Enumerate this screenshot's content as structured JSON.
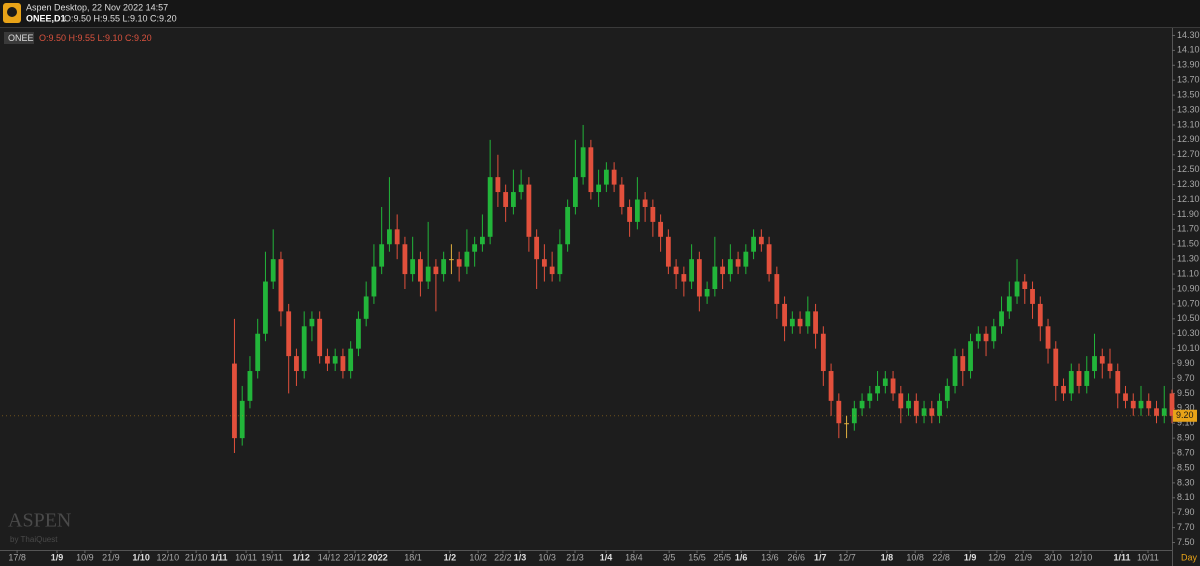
{
  "header": {
    "app": "Aspen Desktop, 22 Nov 2022 14:57",
    "symbol": "ONEE,D1",
    "ohlc": "O:9.50 H:9.55 L:9.10 C:9.20"
  },
  "watermark": {
    "brand": "ASPEN",
    "by": "by ThaiQuest"
  },
  "chart_data": {
    "type": "candlestick",
    "legend": "ONEE",
    "legend_ohlc": "O:9.50 H:9.55 L:9.10 C:9.20",
    "timeframe": "Day",
    "up_color": "#22b53a",
    "down_color": "#e2503c",
    "flat_color": "#e0b040",
    "xlim": [
      0,
      302
    ],
    "ylim": [
      7.4,
      14.4
    ],
    "x": [
      60,
      62,
      64,
      66,
      68,
      70,
      72,
      74,
      76,
      78,
      80,
      82,
      84,
      86,
      88,
      90,
      92,
      94,
      96,
      98,
      100,
      102,
      104,
      106,
      108,
      110,
      112,
      114,
      116,
      118,
      120,
      122,
      124,
      126,
      128,
      130,
      132,
      134,
      136,
      138,
      140,
      142,
      144,
      146,
      148,
      150,
      152,
      154,
      156,
      158,
      160,
      162,
      164,
      166,
      168,
      170,
      172,
      174,
      176,
      178,
      180,
      182,
      184,
      186,
      188,
      190,
      192,
      194,
      196,
      198,
      200,
      202,
      204,
      206,
      208,
      210,
      212,
      214,
      216,
      218,
      220,
      222,
      224,
      226,
      228,
      230,
      232,
      234,
      236,
      238,
      240,
      242,
      244,
      246,
      248,
      250,
      252,
      254,
      256,
      258,
      260,
      262,
      264,
      266,
      268,
      270,
      272,
      274,
      276,
      278,
      280,
      282,
      284,
      286,
      288,
      290,
      292,
      294,
      296,
      298,
      300,
      302
    ],
    "open": [
      9.9,
      8.9,
      9.4,
      9.8,
      10.3,
      11.0,
      11.3,
      10.6,
      10.0,
      9.8,
      10.4,
      10.5,
      10.0,
      9.9,
      10.0,
      9.8,
      10.1,
      10.5,
      10.8,
      11.2,
      11.5,
      11.7,
      11.5,
      11.1,
      11.3,
      11.0,
      11.2,
      11.1,
      11.3,
      11.3,
      11.2,
      11.4,
      11.5,
      11.6,
      12.4,
      12.2,
      12.0,
      12.2,
      12.3,
      11.6,
      11.3,
      11.2,
      11.1,
      11.5,
      12.0,
      12.4,
      12.8,
      12.2,
      12.3,
      12.5,
      12.3,
      12.0,
      11.8,
      12.1,
      12.0,
      11.8,
      11.6,
      11.2,
      11.1,
      11.0,
      11.3,
      10.8,
      10.9,
      11.2,
      11.1,
      11.3,
      11.2,
      11.4,
      11.6,
      11.5,
      11.1,
      10.7,
      10.4,
      10.5,
      10.4,
      10.6,
      10.3,
      9.8,
      9.4,
      9.1,
      9.1,
      9.3,
      9.4,
      9.5,
      9.6,
      9.7,
      9.5,
      9.3,
      9.4,
      9.2,
      9.3,
      9.2,
      9.4,
      9.6,
      10.0,
      9.8,
      10.2,
      10.3,
      10.2,
      10.4,
      10.6,
      10.8,
      11.0,
      10.9,
      10.7,
      10.4,
      10.1,
      9.6,
      9.5,
      9.8,
      9.6,
      9.8,
      10.0,
      9.9,
      9.8,
      9.5,
      9.4,
      9.3,
      9.4,
      9.3,
      9.2,
      9.5
    ],
    "high": [
      10.5,
      9.6,
      10.0,
      10.5,
      11.4,
      11.7,
      11.4,
      10.7,
      10.1,
      10.6,
      10.6,
      10.6,
      10.1,
      10.1,
      10.1,
      10.2,
      10.6,
      11.0,
      11.5,
      12.0,
      12.4,
      11.9,
      11.6,
      11.6,
      11.4,
      11.8,
      11.3,
      11.4,
      11.5,
      11.4,
      11.7,
      11.6,
      11.9,
      12.9,
      12.7,
      12.3,
      12.5,
      12.5,
      12.4,
      11.7,
      11.5,
      11.4,
      11.7,
      12.1,
      12.9,
      13.1,
      12.9,
      12.5,
      12.6,
      12.6,
      12.4,
      12.1,
      12.4,
      12.2,
      12.1,
      11.9,
      11.7,
      11.3,
      11.2,
      11.5,
      11.4,
      11.0,
      11.6,
      11.3,
      11.5,
      11.4,
      11.5,
      11.7,
      11.7,
      11.6,
      11.2,
      10.8,
      10.6,
      10.6,
      10.8,
      10.7,
      10.4,
      9.9,
      9.5,
      9.2,
      9.4,
      9.5,
      9.6,
      9.8,
      9.8,
      9.8,
      9.6,
      9.5,
      9.5,
      9.4,
      9.4,
      9.5,
      9.7,
      10.1,
      10.1,
      10.3,
      10.4,
      10.4,
      10.5,
      10.8,
      11.0,
      11.3,
      11.1,
      11.0,
      10.8,
      10.5,
      10.2,
      9.7,
      9.9,
      9.9,
      10.0,
      10.3,
      10.1,
      10.1,
      9.9,
      9.6,
      9.5,
      9.6,
      9.5,
      9.4,
      9.6,
      9.55
    ],
    "low": [
      8.7,
      8.8,
      9.3,
      9.7,
      10.2,
      10.9,
      10.4,
      9.5,
      9.6,
      9.7,
      10.2,
      9.9,
      9.8,
      9.8,
      9.7,
      9.7,
      10.0,
      10.4,
      10.7,
      11.1,
      11.4,
      11.3,
      10.9,
      11.0,
      10.8,
      10.9,
      10.6,
      11.0,
      11.1,
      11.0,
      11.1,
      11.2,
      11.4,
      11.5,
      12.0,
      11.8,
      11.9,
      12.1,
      11.4,
      10.9,
      11.0,
      11.0,
      11.0,
      11.4,
      11.9,
      12.3,
      12.1,
      12.0,
      12.2,
      12.2,
      11.9,
      11.6,
      11.7,
      11.8,
      11.6,
      11.4,
      11.1,
      10.9,
      10.8,
      10.9,
      10.6,
      10.7,
      10.8,
      10.9,
      11.0,
      11.1,
      11.1,
      11.3,
      11.4,
      11.0,
      10.5,
      10.2,
      10.3,
      10.3,
      10.3,
      10.1,
      9.6,
      9.2,
      8.9,
      8.9,
      9.0,
      9.2,
      9.3,
      9.4,
      9.5,
      9.4,
      9.1,
      9.2,
      9.1,
      9.1,
      9.1,
      9.1,
      9.3,
      9.5,
      9.6,
      9.7,
      10.1,
      10.0,
      10.1,
      10.3,
      10.5,
      10.7,
      10.7,
      10.5,
      10.2,
      9.9,
      9.4,
      9.4,
      9.4,
      9.5,
      9.5,
      9.7,
      9.7,
      9.7,
      9.3,
      9.3,
      9.2,
      9.2,
      9.2,
      9.1,
      9.1,
      9.1
    ],
    "close": [
      8.9,
      9.4,
      9.8,
      10.3,
      11.0,
      11.3,
      10.6,
      10.0,
      9.8,
      10.4,
      10.5,
      10.0,
      9.9,
      10.0,
      9.8,
      10.1,
      10.5,
      10.8,
      11.2,
      11.5,
      11.7,
      11.5,
      11.1,
      11.3,
      11.0,
      11.2,
      11.1,
      11.3,
      11.3,
      11.2,
      11.4,
      11.5,
      11.6,
      12.4,
      12.2,
      12.0,
      12.2,
      12.3,
      11.6,
      11.3,
      11.2,
      11.1,
      11.5,
      12.0,
      12.4,
      12.8,
      12.2,
      12.3,
      12.5,
      12.3,
      12.0,
      11.8,
      12.1,
      12.0,
      11.8,
      11.6,
      11.2,
      11.1,
      11.0,
      11.3,
      10.8,
      10.9,
      11.2,
      11.1,
      11.3,
      11.2,
      11.4,
      11.6,
      11.5,
      11.1,
      10.7,
      10.4,
      10.5,
      10.4,
      10.6,
      10.3,
      9.8,
      9.4,
      9.1,
      9.1,
      9.3,
      9.4,
      9.5,
      9.6,
      9.7,
      9.5,
      9.3,
      9.4,
      9.2,
      9.3,
      9.2,
      9.4,
      9.6,
      10.0,
      9.8,
      10.2,
      10.3,
      10.2,
      10.4,
      10.6,
      10.8,
      11.0,
      10.9,
      10.7,
      10.4,
      10.1,
      9.6,
      9.5,
      9.8,
      9.6,
      9.8,
      10.0,
      9.9,
      9.8,
      9.5,
      9.4,
      9.3,
      9.4,
      9.3,
      9.2,
      9.3,
      9.2
    ],
    "last_price": {
      "value": 9.2,
      "label": "9.20"
    },
    "yticks": [
      {
        "value": 7.5,
        "label": "7.50"
      },
      {
        "value": 7.7,
        "label": "7.70"
      },
      {
        "value": 7.9,
        "label": "7.90"
      },
      {
        "value": 8.1,
        "label": "8.10"
      },
      {
        "value": 8.3,
        "label": "8.30"
      },
      {
        "value": 8.5,
        "label": "8.50"
      },
      {
        "value": 8.7,
        "label": "8.70"
      },
      {
        "value": 8.9,
        "label": "8.90"
      },
      {
        "value": 9.1,
        "label": "9.10"
      },
      {
        "value": 9.3,
        "label": "9.30"
      },
      {
        "value": 9.5,
        "label": "9.50"
      },
      {
        "value": 9.7,
        "label": "9.70"
      },
      {
        "value": 9.9,
        "label": "9.90"
      },
      {
        "value": 10.1,
        "label": "10.10"
      },
      {
        "value": 10.3,
        "label": "10.30"
      },
      {
        "value": 10.5,
        "label": "10.50"
      },
      {
        "value": 10.7,
        "label": "10.70"
      },
      {
        "value": 10.9,
        "label": "10.90"
      },
      {
        "value": 11.1,
        "label": "11.10"
      },
      {
        "value": 11.3,
        "label": "11.30"
      },
      {
        "value": 11.5,
        "label": "11.50"
      },
      {
        "value": 11.7,
        "label": "11.70"
      },
      {
        "value": 11.9,
        "label": "11.90"
      },
      {
        "value": 12.1,
        "label": "12.10"
      },
      {
        "value": 12.3,
        "label": "12.30"
      },
      {
        "value": 12.5,
        "label": "12.50"
      },
      {
        "value": 12.7,
        "label": "12.70"
      },
      {
        "value": 12.9,
        "label": "12.90"
      },
      {
        "value": 13.1,
        "label": "13.10"
      },
      {
        "value": 13.3,
        "label": "13.30"
      },
      {
        "value": 13.5,
        "label": "13.50"
      },
      {
        "value": 13.7,
        "label": "13.70"
      },
      {
        "value": 13.9,
        "label": "13.90"
      },
      {
        "value": 14.1,
        "label": "14.10"
      },
      {
        "value": 14.3,
        "label": "14.30"
      }
    ],
    "xticks": [
      {
        "value": 3.9,
        "label": "17/8"
      },
      {
        "value": 14.2,
        "label": "1/9"
      },
      {
        "value": 21.4,
        "label": "10/9"
      },
      {
        "value": 28.1,
        "label": "21/9"
      },
      {
        "value": 35.9,
        "label": "1/10"
      },
      {
        "value": 42.8,
        "label": "12/10"
      },
      {
        "value": 50.1,
        "label": "21/10"
      },
      {
        "value": 56,
        "label": "1/11"
      },
      {
        "value": 63,
        "label": "10/11"
      },
      {
        "value": 69.7,
        "label": "19/11"
      },
      {
        "value": 77.2,
        "label": "1/12"
      },
      {
        "value": 84.4,
        "label": "14/12"
      },
      {
        "value": 91.1,
        "label": "23/12"
      },
      {
        "value": 97,
        "label": "2022"
      },
      {
        "value": 106.1,
        "label": "18/1"
      },
      {
        "value": 115.6,
        "label": "1/2"
      },
      {
        "value": 122.9,
        "label": "10/2"
      },
      {
        "value": 129.3,
        "label": "22/2"
      },
      {
        "value": 133.7,
        "label": "1/3"
      },
      {
        "value": 140.7,
        "label": "10/3"
      },
      {
        "value": 147.9,
        "label": "21/3"
      },
      {
        "value": 155.9,
        "label": "1/4"
      },
      {
        "value": 163.1,
        "label": "18/4"
      },
      {
        "value": 172.2,
        "label": "3/5"
      },
      {
        "value": 179.4,
        "label": "15/5"
      },
      {
        "value": 185.9,
        "label": "25/5"
      },
      {
        "value": 190.8,
        "label": "1/6"
      },
      {
        "value": 198.2,
        "label": "13/6"
      },
      {
        "value": 205,
        "label": "26/6"
      },
      {
        "value": 211.2,
        "label": "1/7"
      },
      {
        "value": 218.1,
        "label": "12/7"
      },
      {
        "value": 228.4,
        "label": "1/8"
      },
      {
        "value": 235.7,
        "label": "10/8"
      },
      {
        "value": 242.4,
        "label": "22/8"
      },
      {
        "value": 249.9,
        "label": "1/9"
      },
      {
        "value": 256.8,
        "label": "12/9"
      },
      {
        "value": 263.6,
        "label": "21/9"
      },
      {
        "value": 271.3,
        "label": "3/10"
      },
      {
        "value": 278.5,
        "label": "12/10"
      },
      {
        "value": 289.1,
        "label": "1/11"
      },
      {
        "value": 295.8,
        "label": "10/11"
      }
    ]
  }
}
